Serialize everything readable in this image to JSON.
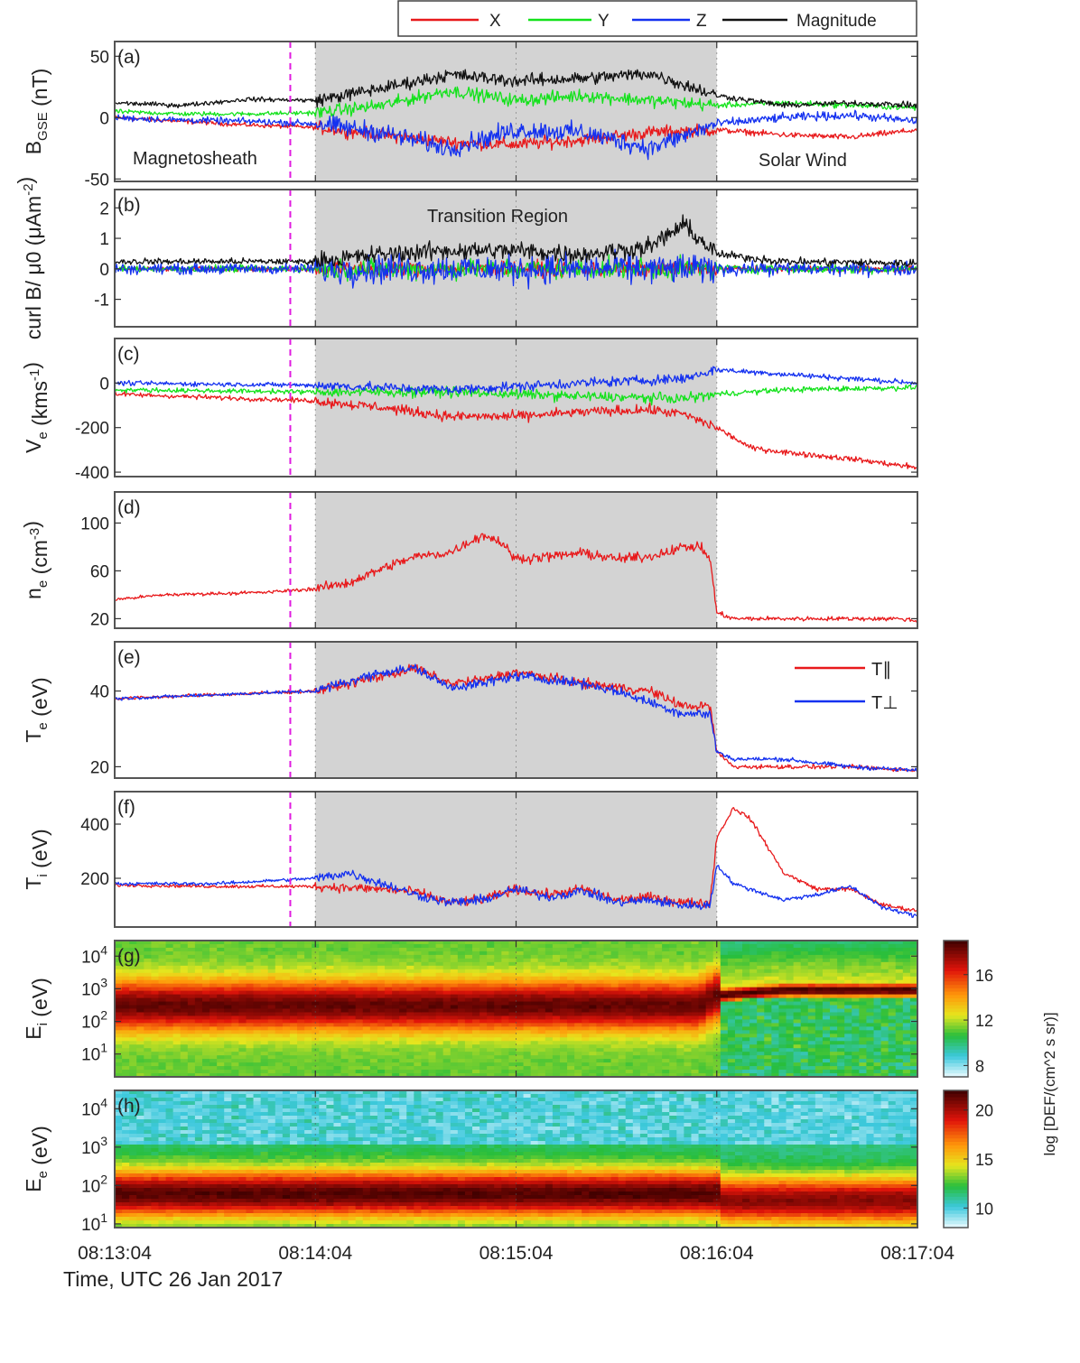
{
  "legend": [
    {
      "label": "X",
      "color": "#e8191b"
    },
    {
      "label": "Y",
      "color": "#13e21b"
    },
    {
      "label": "Z",
      "color": "#1431f0"
    },
    {
      "label": "Magnitude",
      "color": "#111111"
    }
  ],
  "time_axis": {
    "ticks": [
      "08:13:04",
      "08:14:04",
      "08:15:04",
      "08:16:04",
      "08:17:04"
    ],
    "label": "Time, UTC 26 Jan 2017",
    "shaded_region": [
      60,
      180
    ],
    "marker_time": 52.5,
    "marker_color": "#e01be0"
  },
  "annotations": {
    "magnetosheath": "Magnetosheath",
    "solar_wind": "Solar Wind",
    "transition": "Transition Region"
  },
  "colors": {
    "x": "#e8191b",
    "y": "#13e21b",
    "z": "#1431f0",
    "mag": "#111111",
    "shade": "#d3d3d3",
    "tpar": "#e8191b",
    "tperp": "#1431f0"
  },
  "chart_data": [
    {
      "panel": "(a)",
      "type": "line",
      "ylabel": "B_GSE (nT)",
      "ylim": [
        -52,
        62
      ],
      "yticks": [
        "50",
        "0",
        "-50"
      ],
      "ytick_values": [
        50,
        0,
        -50
      ],
      "series": [
        {
          "name": "X",
          "t": [
            0,
            20,
            40,
            60,
            80,
            100,
            120,
            140,
            160,
            180,
            200,
            220,
            240
          ],
          "v": [
            0,
            -3,
            -6,
            -8,
            -14,
            -20,
            -22,
            -18,
            -12,
            -10,
            -14,
            -16,
            -10
          ]
        },
        {
          "name": "Y",
          "t": [
            0,
            20,
            40,
            60,
            80,
            100,
            120,
            140,
            160,
            180,
            200,
            220,
            240
          ],
          "v": [
            5,
            3,
            3,
            4,
            10,
            22,
            14,
            18,
            14,
            10,
            12,
            10,
            8
          ]
        },
        {
          "name": "Z",
          "t": [
            0,
            20,
            40,
            60,
            80,
            100,
            120,
            140,
            160,
            180,
            200,
            220,
            240
          ],
          "v": [
            0,
            -2,
            -3,
            -5,
            -12,
            -25,
            -10,
            -12,
            -25,
            -5,
            0,
            2,
            -3
          ]
        },
        {
          "name": "Magnitude",
          "t": [
            0,
            20,
            40,
            60,
            80,
            100,
            120,
            140,
            160,
            180,
            200,
            220,
            240
          ],
          "v": [
            12,
            10,
            15,
            14,
            24,
            35,
            30,
            32,
            36,
            18,
            10,
            12,
            10
          ]
        }
      ]
    },
    {
      "panel": "(b)",
      "type": "line",
      "ylabel": "curl B/ μ0 (μAm^-2)",
      "ylim": [
        -1.9,
        2.6
      ],
      "yticks": [
        "2",
        "1",
        "0",
        "-1"
      ],
      "ytick_values": [
        2,
        1,
        0,
        -1
      ],
      "series": [
        {
          "name": "X",
          "amplitude": 0.15
        },
        {
          "name": "Y",
          "amplitude": 0.2
        },
        {
          "name": "Z",
          "amplitude": 0.3
        },
        {
          "name": "Magnitude",
          "t": [
            0,
            60,
            80,
            100,
            120,
            140,
            160,
            170,
            180,
            200,
            240
          ],
          "v": [
            0.2,
            0.2,
            0.4,
            0.5,
            0.5,
            0.4,
            0.6,
            1.2,
            0.4,
            0.2,
            0.15
          ]
        }
      ]
    },
    {
      "panel": "(c)",
      "type": "line",
      "ylabel": "V_e (kms^-1)",
      "ylim": [
        -420,
        200
      ],
      "yticks": [
        "0",
        "-200",
        "-400"
      ],
      "ytick_values": [
        0,
        -200,
        -400
      ],
      "series": [
        {
          "name": "Y",
          "t": [
            0,
            60,
            100,
            140,
            170,
            180,
            200,
            240
          ],
          "v": [
            -30,
            -40,
            -40,
            -60,
            -70,
            -50,
            -30,
            -20
          ]
        },
        {
          "name": "Z",
          "t": [
            0,
            60,
            100,
            140,
            170,
            180,
            200,
            240
          ],
          "v": [
            0,
            -10,
            -30,
            0,
            20,
            60,
            40,
            0
          ]
        },
        {
          "name": "X",
          "t": [
            0,
            20,
            40,
            60,
            80,
            100,
            120,
            140,
            160,
            170,
            180,
            190,
            200,
            220,
            240
          ],
          "v": [
            -50,
            -60,
            -70,
            -80,
            -110,
            -150,
            -150,
            -130,
            -120,
            -140,
            -200,
            -290,
            -310,
            -340,
            -380
          ]
        }
      ]
    },
    {
      "panel": "(d)",
      "type": "line",
      "ylabel": "n_e (cm^-3)",
      "ylim": [
        12,
        126
      ],
      "yticks": [
        "100",
        "60",
        "20"
      ],
      "ytick_values": [
        100,
        60,
        20
      ],
      "series": [
        {
          "name": "n_e",
          "t": [
            0,
            15,
            30,
            45,
            60,
            70,
            80,
            90,
            100,
            110,
            115,
            120,
            130,
            140,
            150,
            160,
            170,
            175,
            178,
            180,
            185,
            195,
            205,
            215,
            225,
            235,
            240
          ],
          "v": [
            36,
            40,
            41,
            42,
            45,
            50,
            62,
            72,
            75,
            90,
            85,
            70,
            72,
            75,
            70,
            72,
            80,
            80,
            70,
            25,
            20,
            20,
            20,
            20,
            20,
            20,
            18
          ]
        }
      ]
    },
    {
      "panel": "(e)",
      "type": "line",
      "ylabel": "T_e (eV)",
      "ylim": [
        17,
        53
      ],
      "yticks": [
        "40",
        "20"
      ],
      "ytick_values": [
        40,
        20
      ],
      "legend_labels": {
        "par": "T∥",
        "perp": "T⊥"
      },
      "series": [
        {
          "name": "T∥",
          "t": [
            0,
            30,
            60,
            80,
            90,
            100,
            110,
            120,
            140,
            150,
            160,
            170,
            178,
            180,
            185,
            200,
            220,
            240
          ],
          "v": [
            38,
            39,
            40,
            44,
            46,
            42,
            43,
            45,
            42,
            41,
            40,
            36,
            36,
            24,
            20,
            20,
            20,
            19
          ]
        },
        {
          "name": "T⊥",
          "t": [
            0,
            30,
            60,
            80,
            90,
            100,
            110,
            120,
            140,
            150,
            160,
            170,
            178,
            180,
            185,
            200,
            220,
            240
          ],
          "v": [
            38,
            39,
            40,
            45,
            46,
            41,
            42,
            44,
            42,
            40,
            37,
            34,
            34,
            24,
            22,
            22,
            20,
            19
          ]
        }
      ]
    },
    {
      "panel": "(f)",
      "type": "line",
      "ylabel": "T_i (eV)",
      "ylim": [
        20,
        520
      ],
      "yticks": [
        "400",
        "200"
      ],
      "ytick_values": [
        400,
        200
      ],
      "series": [
        {
          "name": "T∥",
          "t": [
            0,
            30,
            60,
            70,
            80,
            90,
            100,
            110,
            120,
            130,
            140,
            150,
            160,
            170,
            178,
            180,
            185,
            190,
            200,
            210,
            220,
            230,
            240
          ],
          "v": [
            175,
            170,
            170,
            165,
            160,
            150,
            110,
            120,
            160,
            140,
            160,
            120,
            130,
            110,
            110,
            350,
            460,
            420,
            220,
            160,
            160,
            100,
            80
          ]
        },
        {
          "name": "T⊥",
          "t": [
            0,
            30,
            60,
            70,
            80,
            90,
            100,
            110,
            120,
            130,
            140,
            150,
            160,
            170,
            178,
            180,
            185,
            190,
            200,
            210,
            220,
            230,
            240
          ],
          "v": [
            180,
            180,
            200,
            220,
            180,
            140,
            110,
            120,
            160,
            130,
            155,
            110,
            120,
            100,
            100,
            250,
            180,
            160,
            120,
            140,
            170,
            90,
            60
          ]
        }
      ]
    },
    {
      "panel": "(g)",
      "type": "heatmap",
      "ylabel": "E_i (eV)",
      "yscale": "log",
      "ylim": [
        2,
        30000
      ],
      "yticks": [
        "10^4",
        "10^3",
        "10^2",
        "10^1"
      ],
      "ytick_values": [
        10000,
        1000,
        100,
        10
      ],
      "peak_energy_t": [
        0,
        60,
        100,
        140,
        175,
        180,
        200,
        240
      ],
      "peak_energy_v": [
        300,
        300,
        300,
        300,
        300,
        600,
        900,
        900
      ],
      "colorbar": {
        "label": "log [DEF/(cm^2 s sr)]",
        "ticks": [
          "16",
          "12",
          "8"
        ],
        "tick_values": [
          16,
          12,
          8
        ],
        "range": [
          7,
          19
        ]
      }
    },
    {
      "panel": "(h)",
      "type": "heatmap",
      "ylabel": "E_e (eV)",
      "yscale": "log",
      "ylim": [
        8,
        30000
      ],
      "yticks": [
        "10^4",
        "10^3",
        "10^2",
        "10^1"
      ],
      "ytick_values": [
        10000,
        1000,
        100,
        10
      ],
      "peak_energy_t": [
        0,
        180,
        181,
        240
      ],
      "peak_energy_v": [
        60,
        60,
        40,
        40
      ],
      "colorbar": {
        "label": "",
        "ticks": [
          "20",
          "15",
          "10"
        ],
        "tick_values": [
          20,
          15,
          10
        ],
        "range": [
          8,
          22
        ]
      }
    }
  ]
}
